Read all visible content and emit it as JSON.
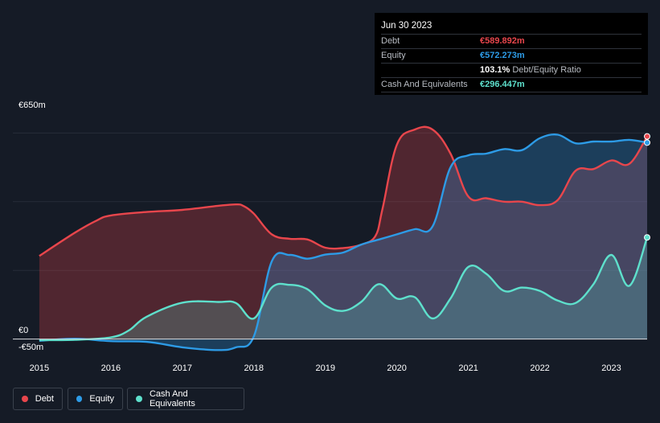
{
  "tooltip": {
    "date": "Jun 30 2023",
    "rows": [
      {
        "label": "Debt",
        "value": "€589.892m",
        "color": "#e8464c"
      },
      {
        "label": "Equity",
        "value": "€572.273m",
        "color": "#2d9be6"
      },
      {
        "label": "",
        "value": "103.1%",
        "desc": "Debt/Equity Ratio",
        "color": "#ffffff"
      },
      {
        "label": "Cash And Equivalents",
        "value": "€296.447m",
        "color": "#5ee0cc"
      }
    ]
  },
  "legend": [
    {
      "label": "Debt",
      "color": "#e8464c"
    },
    {
      "label": "Equity",
      "color": "#2d9be6"
    },
    {
      "label": "Cash And Equivalents",
      "color": "#5ee0cc"
    }
  ],
  "chart_data": {
    "type": "area",
    "y_axis_labels": [
      "€650m",
      "€0",
      "-€50m"
    ],
    "ylim": [
      -50,
      650
    ],
    "x_tick_labels": [
      "2015",
      "2016",
      "2017",
      "2018",
      "2019",
      "2020",
      "2021",
      "2022",
      "2023"
    ],
    "x_ticks": [
      2015,
      2016,
      2017,
      2018,
      2019,
      2020,
      2021,
      2022,
      2023
    ],
    "xlim": [
      2014.63,
      2023.5
    ],
    "grid": "horizontal",
    "series": [
      {
        "name": "Debt",
        "color": "#e8464c",
        "x": [
          2015.0,
          2015.5,
          2015.8,
          2016.0,
          2016.5,
          2017.0,
          2017.5,
          2017.75,
          2017.85,
          2018.0,
          2018.25,
          2018.5,
          2018.75,
          2019.0,
          2019.25,
          2019.5,
          2019.7,
          2019.8,
          2020.0,
          2020.25,
          2020.5,
          2020.75,
          2021.0,
          2021.25,
          2021.5,
          2021.75,
          2022.0,
          2022.25,
          2022.5,
          2022.75,
          2023.0,
          2023.25,
          2023.5
        ],
        "values": [
          242,
          310,
          345,
          360,
          370,
          376,
          388,
          392,
          388,
          365,
          305,
          292,
          290,
          266,
          265,
          275,
          300,
          380,
          566,
          610,
          610,
          540,
          415,
          410,
          400,
          400,
          390,
          405,
          490,
          495,
          520,
          510,
          590
        ]
      },
      {
        "name": "Equity",
        "color": "#2d9be6",
        "x": [
          2015.0,
          2015.5,
          2016.0,
          2016.5,
          2017.0,
          2017.5,
          2017.75,
          2018.0,
          2018.25,
          2018.5,
          2018.75,
          2019.0,
          2019.25,
          2019.5,
          2019.75,
          2020.0,
          2020.25,
          2020.5,
          2020.75,
          2021.0,
          2021.25,
          2021.5,
          2021.75,
          2022.0,
          2022.25,
          2022.5,
          2022.75,
          2023.0,
          2023.25,
          2023.5
        ],
        "values": [
          -5,
          1,
          -6,
          -8,
          -24,
          -32,
          -24,
          8,
          226,
          245,
          234,
          246,
          252,
          275,
          290,
          305,
          320,
          328,
          500,
          535,
          540,
          553,
          550,
          585,
          595,
          570,
          575,
          575,
          580,
          572
        ]
      },
      {
        "name": "Cash And Equivalents",
        "color": "#5ee0cc",
        "x": [
          2015.0,
          2015.5,
          2016.0,
          2016.25,
          2016.5,
          2017.0,
          2017.5,
          2017.75,
          2018.0,
          2018.25,
          2018.5,
          2018.75,
          2019.0,
          2019.25,
          2019.5,
          2019.75,
          2020.0,
          2020.25,
          2020.5,
          2020.75,
          2021.0,
          2021.25,
          2021.5,
          2021.75,
          2022.0,
          2022.25,
          2022.5,
          2022.75,
          2023.0,
          2023.25,
          2023.5
        ],
        "values": [
          -3,
          -2,
          5,
          25,
          65,
          106,
          108,
          105,
          60,
          150,
          158,
          145,
          98,
          82,
          108,
          160,
          118,
          122,
          60,
          118,
          210,
          190,
          140,
          150,
          140,
          112,
          105,
          160,
          245,
          155,
          296
        ]
      }
    ]
  }
}
